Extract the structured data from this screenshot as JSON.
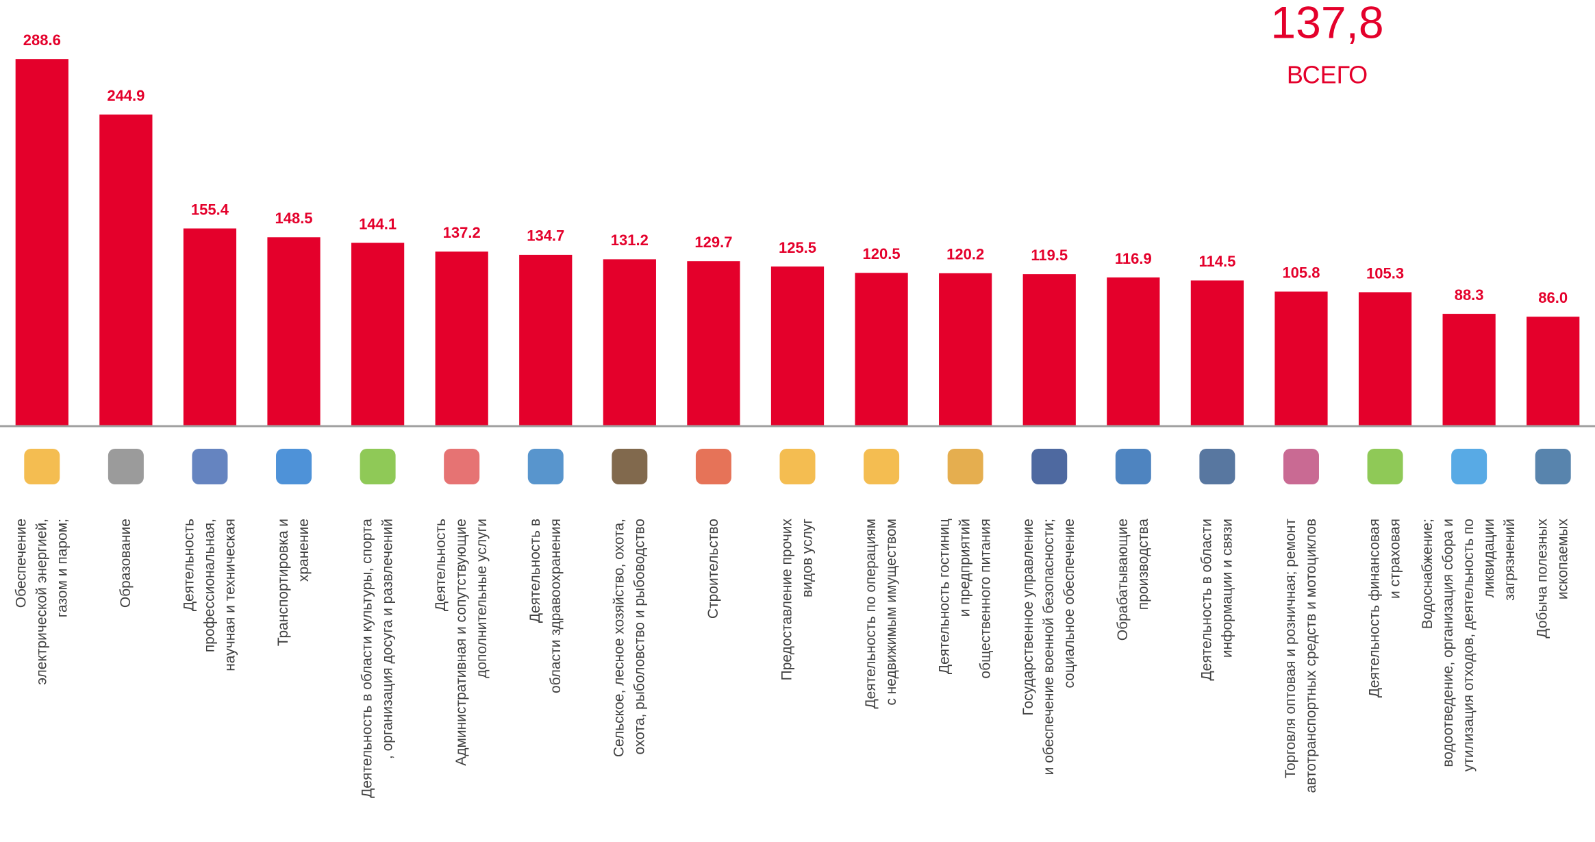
{
  "chart_data": {
    "type": "bar",
    "total": "137,8",
    "total_label": "ВСЕГО",
    "categories": [
      "Обеспечение\nэлектрической энергией,\nгазом и паром;",
      "Образование",
      "Деятельность\nпрофессиональная,\nнаучная и техническая",
      "Транспортировка и\nхранение",
      "Деятельность в области культуры, спорта\n, организация досуга и развлечений",
      "Деятельность\nАдминистративная и сопутствующие\nдополнительные услуги",
      "Деятельность в\nобласти здравоохранения",
      "Сельское, лесное хозяйство, охота,\nохота, рыболовство и рыбоводство",
      "Строительство",
      "Предоставление прочих\nвидов услуг",
      "Деятельность по операциям\nс недвижимым имуществом",
      "Деятельность гостиниц\nи предприятий\nобщественного питания",
      "Государственное управление\nи обеспечение военной безопасности;\nсоциальное обеспечение",
      "Обрабатывающие\nпроизводства",
      "Деятельность в области\nинформации и связи",
      "Торговля оптовая и розничная; ремонт\nавтотранспортных средств и мотоциклов",
      "Деятельность финансовая\nи  страховая",
      "Водоснабжение;\nводоотведение, организация сбора и\nутилизация отходов, деятельность по\nликвидации\nзагрязнений",
      "Добыча  полезных\nископаемых"
    ],
    "values": [
      288.6,
      244.9,
      155.4,
      148.5,
      144.1,
      137.2,
      134.7,
      131.2,
      129.7,
      125.5,
      120.5,
      120.2,
      119.5,
      116.9,
      114.5,
      105.8,
      105.3,
      88.3,
      86.0
    ],
    "value_labels": [
      "288.6",
      "244.9",
      "155.4",
      "148.5",
      "144.1",
      "137.2",
      "134.7",
      "131.2",
      "129.7",
      "125.5",
      "120.5",
      "120.2",
      "119.5",
      "116.9",
      "114.5",
      "105.8",
      "105.3",
      "88.3",
      "86.0"
    ],
    "color": "#e4002b",
    "ylim": [
      0,
      300
    ]
  }
}
